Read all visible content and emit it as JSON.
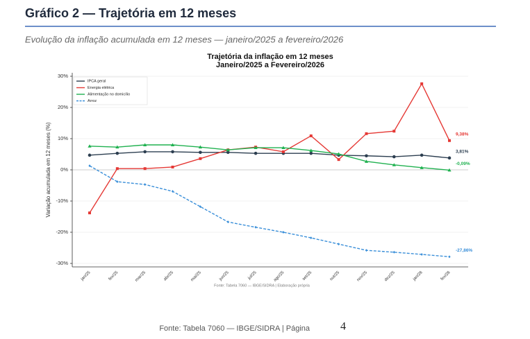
{
  "header": {
    "title": "Gráfico 2 — Trajetória em 12 meses",
    "subtitle": "Evolução da inflação acumulada em 12 meses — janeiro/2025 a fevereiro/2026"
  },
  "chart_data": {
    "type": "line",
    "title": "Trajetória da inflação em 12 meses",
    "subtitle": "Janeiro/2025 a Fevereiro/2026",
    "y_label": "Variação acumulada em 12 meses (%)",
    "source": "Fonte: Tabela 7060 — IBGE/SIDRA  |  Elaboração própria",
    "categories": [
      "jan/25",
      "fev/25",
      "mar/25",
      "abr/25",
      "mai/25",
      "jun/25",
      "jul/25",
      "ago/25",
      "set/25",
      "out/25",
      "nov/25",
      "dez/25",
      "jan/26",
      "fev/26"
    ],
    "ylim": [
      -30,
      30
    ],
    "yticks": [
      {
        "value": -30,
        "label": "-30%"
      },
      {
        "value": -20,
        "label": "-20%"
      },
      {
        "value": -10,
        "label": "-10%"
      },
      {
        "value": 0,
        "label": "0%"
      },
      {
        "value": 10,
        "label": "10%"
      },
      {
        "value": 20,
        "label": "20%"
      },
      {
        "value": 30,
        "label": "30%"
      }
    ],
    "grid": true,
    "legend": "upper left",
    "series": [
      {
        "name": "IPCA geral",
        "color": "#2c3e50",
        "marker": "circle",
        "dashed": false,
        "values": [
          4.7,
          5.3,
          5.8,
          5.8,
          5.6,
          5.6,
          5.3,
          5.3,
          5.3,
          4.7,
          4.5,
          4.2,
          4.7,
          3.81
        ],
        "value_labels": [
          null,
          null,
          null,
          null,
          null,
          null,
          null,
          null,
          null,
          null,
          null,
          null,
          null,
          "3,81%"
        ]
      },
      {
        "name": "Energia elétrica",
        "color": "#e53935",
        "marker": "square",
        "dashed": false,
        "values": [
          -13.8,
          0.4,
          0.4,
          0.9,
          3.6,
          6.4,
          7.3,
          5.8,
          10.9,
          3.3,
          11.6,
          12.4,
          27.6,
          9.38
        ],
        "value_labels": [
          null,
          null,
          null,
          null,
          null,
          null,
          null,
          null,
          null,
          null,
          null,
          null,
          null,
          "9,38%"
        ]
      },
      {
        "name": "Alimentação no domicílio",
        "color": "#1fb14f",
        "marker": "triangle",
        "dashed": false,
        "values": [
          7.6,
          7.3,
          8.0,
          8.0,
          7.3,
          6.4,
          7.1,
          7.1,
          6.2,
          5.1,
          2.7,
          1.6,
          0.7,
          -0.09
        ],
        "value_labels": [
          null,
          null,
          null,
          null,
          null,
          null,
          null,
          null,
          null,
          null,
          null,
          null,
          null,
          "-0,09%"
        ]
      },
      {
        "name": "Arroz",
        "color": "#3a8fd9",
        "marker": "diamond",
        "dashed": true,
        "values": [
          1.3,
          -3.8,
          -4.7,
          -6.9,
          -11.8,
          -16.7,
          -18.4,
          -20.0,
          -21.8,
          -23.8,
          -25.8,
          -26.4,
          -27.1,
          -27.86
        ],
        "value_labels": [
          null,
          null,
          null,
          null,
          null,
          null,
          null,
          null,
          null,
          null,
          null,
          null,
          null,
          "-27,86%"
        ]
      }
    ]
  },
  "footer": {
    "text": "Fonte: Tabela 7060 — IBGE/SIDRA  |  Página",
    "page": "4"
  }
}
